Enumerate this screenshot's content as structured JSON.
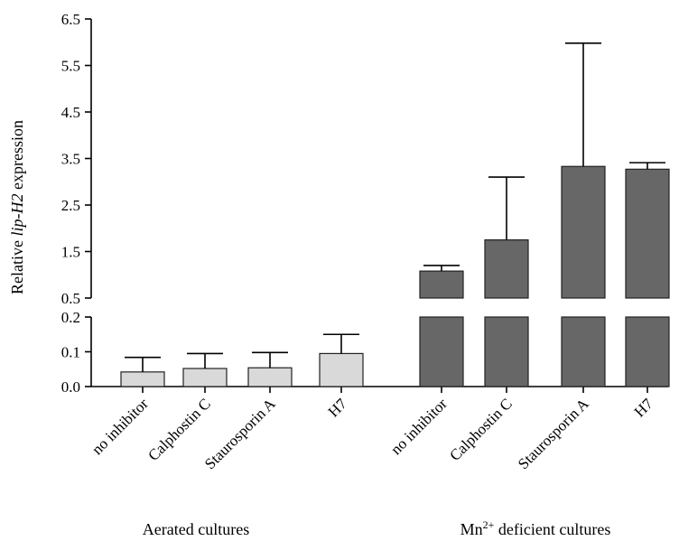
{
  "chart_data": {
    "type": "bar",
    "ylabel_parts": [
      "Relative ",
      "lip-H2",
      " expression"
    ],
    "upper_axis": {
      "ylim": [
        0.5,
        6.5
      ],
      "ticks": [
        "0.5",
        "1.5",
        "2.5",
        "3.5",
        "4.5",
        "5.5",
        "6.5"
      ]
    },
    "lower_axis": {
      "ylim": [
        0.0,
        0.2
      ],
      "ticks": [
        "0.0",
        "0.1",
        "0.2"
      ]
    },
    "groups": [
      {
        "label": "Aerated cultures",
        "color": "#d9d9d9",
        "categories": [
          "no inhibitor",
          "Calphostin C",
          "Staurosporin A",
          "H7"
        ],
        "values": [
          0.042,
          0.052,
          0.054,
          0.095
        ],
        "error": [
          0.042,
          0.043,
          0.044,
          0.055
        ]
      },
      {
        "label_parts": [
          "Mn",
          "2+",
          " deficient cultures"
        ],
        "color": "#676767",
        "categories": [
          "no inhibitor",
          "Calphostin C",
          "Staurosporin A",
          "H7"
        ],
        "values": [
          1.08,
          1.75,
          3.33,
          3.27
        ],
        "error": [
          0.12,
          1.35,
          2.65,
          0.14
        ]
      }
    ]
  }
}
